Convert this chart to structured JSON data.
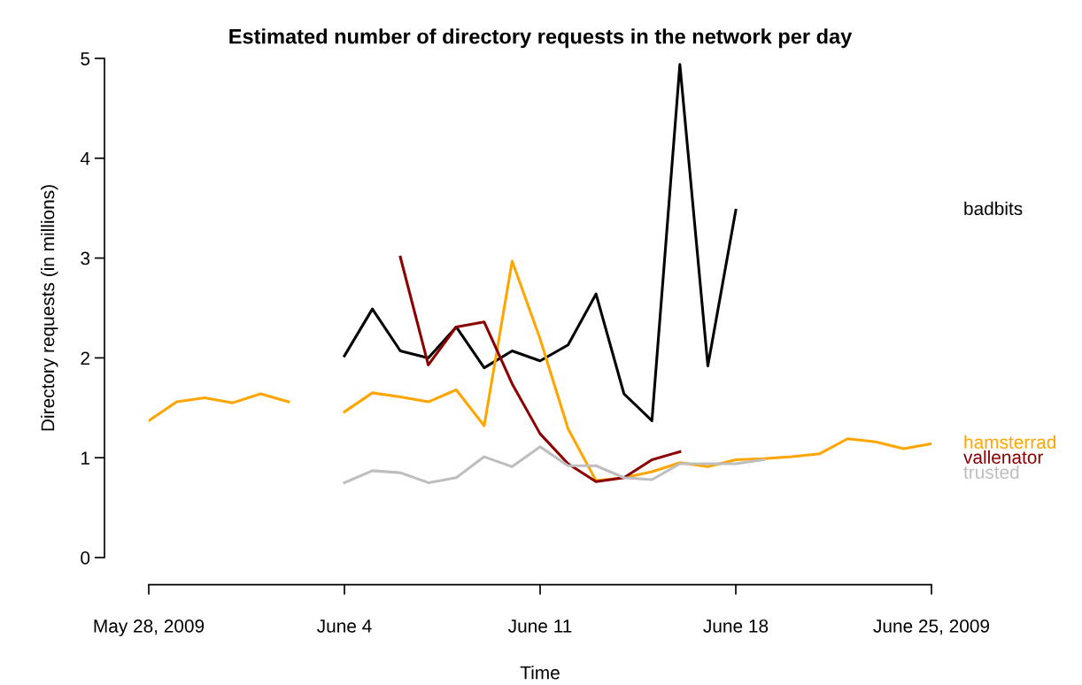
{
  "chart_data": {
    "type": "line",
    "title": "Estimated number of directory requests in the network per day",
    "xlabel": "Time",
    "ylabel": "Directory requests (in millions)",
    "x": [
      "2009-05-28",
      "2009-05-29",
      "2009-05-30",
      "2009-05-31",
      "2009-06-01",
      "2009-06-02",
      "2009-06-03",
      "2009-06-04",
      "2009-06-05",
      "2009-06-06",
      "2009-06-07",
      "2009-06-08",
      "2009-06-09",
      "2009-06-10",
      "2009-06-11",
      "2009-06-12",
      "2009-06-13",
      "2009-06-14",
      "2009-06-15",
      "2009-06-16",
      "2009-06-17",
      "2009-06-18",
      "2009-06-19",
      "2009-06-20",
      "2009-06-21",
      "2009-06-22",
      "2009-06-23",
      "2009-06-24",
      "2009-06-25"
    ],
    "series": [
      {
        "name": "badbits",
        "color": "#000000",
        "values": [
          null,
          null,
          null,
          null,
          null,
          null,
          null,
          2.02,
          2.49,
          2.07,
          2.0,
          2.31,
          1.9,
          2.07,
          1.97,
          2.13,
          2.64,
          1.64,
          1.37,
          4.94,
          1.92,
          3.48,
          null,
          null,
          null,
          null,
          null,
          null,
          null
        ]
      },
      {
        "name": "hamsterrad",
        "color": "#ffa500",
        "values": [
          1.37,
          1.56,
          1.6,
          1.55,
          1.64,
          1.56,
          null,
          1.46,
          1.65,
          1.61,
          1.56,
          1.68,
          1.32,
          2.97,
          2.19,
          1.29,
          0.77,
          0.8,
          0.86,
          0.95,
          0.91,
          0.98,
          0.99,
          1.01,
          1.04,
          1.19,
          1.16,
          1.09,
          1.14
        ]
      },
      {
        "name": "vallenator",
        "color": "#8b0000",
        "values": [
          null,
          null,
          null,
          null,
          null,
          null,
          null,
          null,
          null,
          3.01,
          1.93,
          2.31,
          2.36,
          1.74,
          1.24,
          0.94,
          0.76,
          0.8,
          0.98,
          1.06,
          null,
          null,
          null,
          null,
          null,
          null,
          null,
          null,
          null
        ]
      },
      {
        "name": "trusted",
        "color": "#bebebe",
        "values": [
          null,
          null,
          null,
          null,
          null,
          null,
          null,
          0.75,
          0.87,
          0.85,
          0.75,
          0.8,
          1.01,
          0.91,
          1.11,
          0.92,
          0.92,
          0.8,
          0.78,
          0.94,
          0.94,
          0.94,
          0.98,
          null,
          null,
          null,
          null,
          null,
          null
        ]
      }
    ],
    "xlim": [
      "2009-05-28",
      "2009-06-25"
    ],
    "xticks": [
      {
        "value": "2009-05-28",
        "label": "May 28, 2009"
      },
      {
        "value": "2009-06-04",
        "label": "June 4"
      },
      {
        "value": "2009-06-11",
        "label": "June 11"
      },
      {
        "value": "2009-06-18",
        "label": "June 18"
      },
      {
        "value": "2009-06-25",
        "label": "June 25, 2009"
      }
    ],
    "ylim": [
      0,
      5
    ],
    "yticks": [
      0,
      1,
      2,
      3,
      4,
      5
    ],
    "grid": false,
    "legend": false,
    "marker": "none",
    "line_style": "solid"
  }
}
